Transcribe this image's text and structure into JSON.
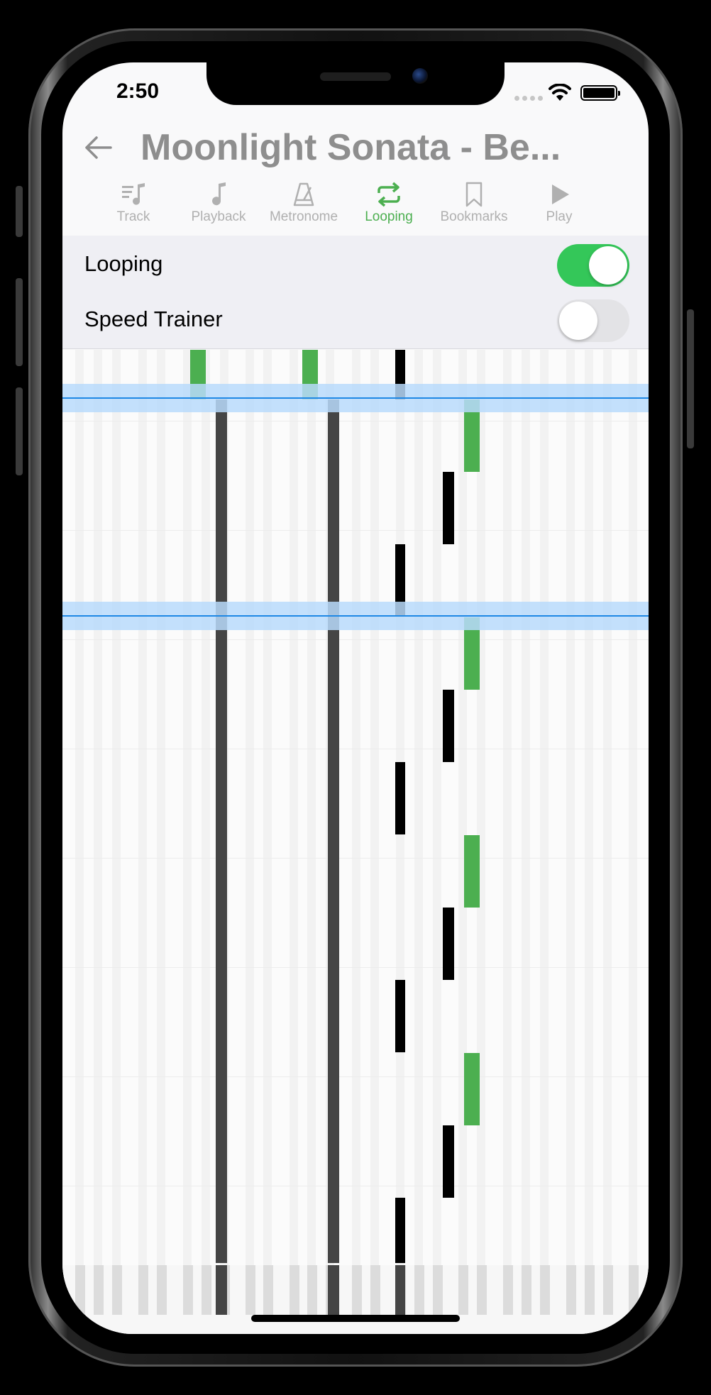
{
  "status_bar": {
    "time": "2:50"
  },
  "header": {
    "title": "Moonlight Sonata - Be..."
  },
  "tabs": [
    {
      "label": "Track",
      "icon": "track-icon",
      "active": false
    },
    {
      "label": "Playback",
      "icon": "music-note-icon",
      "active": false
    },
    {
      "label": "Metronome",
      "icon": "metronome-icon",
      "active": false
    },
    {
      "label": "Looping",
      "icon": "repeat-icon",
      "active": true
    },
    {
      "label": "Bookmarks",
      "icon": "bookmark-icon",
      "active": false
    },
    {
      "label": "Play",
      "icon": "play-icon",
      "active": false
    }
  ],
  "settings": {
    "looping": {
      "label": "Looping",
      "on": true
    },
    "speed_trainer": {
      "label": "Speed Trainer",
      "on": false
    }
  },
  "colors": {
    "accent": "#4caf50",
    "toggle_on": "#34c759",
    "loop_marker": "#1e88e5",
    "loop_band": "#b9dafb",
    "note_dark": "#454545",
    "note_black": "#000000"
  }
}
